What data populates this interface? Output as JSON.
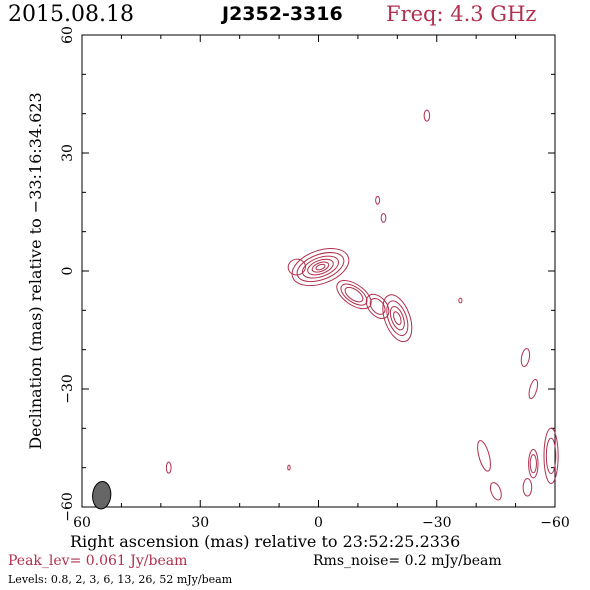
{
  "header": {
    "date": "2015.08.18",
    "source": "J2352-3316",
    "frequency": "Freq: 4.3 GHz"
  },
  "footer": {
    "peak": "Peak_lev=  0.061 Jy/beam",
    "rms": "Rms_noise=  0.2 mJy/beam",
    "levels": "Levels: 0.8,   2,   3,   6,   13,   26,   52 mJy/beam"
  },
  "colors": {
    "contour": "#b0304d",
    "axes": "#000000",
    "beam": "#666666"
  },
  "chart_data": {
    "type": "contour",
    "xlabel": "Right ascension (mas) relative to 23:52:25.2336",
    "ylabel": "Declination (mas) relative to −33:16:34.623",
    "xlim": [
      60,
      -60
    ],
    "ylim": [
      -60,
      60
    ],
    "xticks": [
      60,
      30,
      0,
      -30,
      -60
    ],
    "yticks": [
      -60,
      -30,
      0,
      30,
      60
    ],
    "xtick_labels": [
      "60",
      "30",
      "0",
      "−30",
      "−60"
    ],
    "ytick_labels": [
      "−60",
      "−30",
      "0",
      "30",
      "60"
    ],
    "contour_levels_mJy": [
      0.8,
      2,
      3,
      6,
      13,
      26,
      52
    ],
    "peak_Jy_per_beam": 0.061,
    "rms_mJy_per_beam": 0.2,
    "beam": {
      "x": 55,
      "y": -57,
      "major_mas": 3.5,
      "minor_mas": 2.3,
      "pa_deg": 5
    },
    "components": [
      {
        "name": "core",
        "x": -0.5,
        "y": 1,
        "contours": [
          [
            7.5,
            4.2,
            20
          ],
          [
            6.2,
            3.2,
            20
          ],
          [
            4.8,
            2.4,
            20
          ],
          [
            3.4,
            1.7,
            20
          ],
          [
            2.2,
            1.1,
            20
          ],
          [
            1.2,
            0.6,
            20
          ]
        ]
      },
      {
        "name": "west-blob",
        "x": 5.5,
        "y": 1,
        "contours": [
          [
            2.2,
            2.0,
            10
          ]
        ]
      },
      {
        "name": "jet-knot-1",
        "x": -9,
        "y": -6,
        "contours": [
          [
            5.0,
            2.6,
            -35
          ],
          [
            3.8,
            1.9,
            -35
          ],
          [
            2.6,
            1.3,
            -35
          ]
        ]
      },
      {
        "name": "jet-knot-2",
        "x": -15,
        "y": -9,
        "contours": [
          [
            3.5,
            2.3,
            -50
          ],
          [
            2.3,
            1.5,
            -50
          ]
        ]
      },
      {
        "name": "jet-knot-3",
        "x": -20,
        "y": -12,
        "contours": [
          [
            6.2,
            3.2,
            -70
          ],
          [
            4.6,
            2.3,
            -70
          ],
          [
            3.1,
            1.5,
            -70
          ],
          [
            1.7,
            0.8,
            -70
          ]
        ]
      },
      {
        "name": "noise-a",
        "x": -27.5,
        "y": 39.5,
        "contours": [
          [
            1.4,
            0.7,
            90
          ]
        ]
      },
      {
        "name": "noise-b",
        "x": -15,
        "y": 18,
        "contours": [
          [
            1.0,
            0.5,
            90
          ]
        ]
      },
      {
        "name": "noise-c",
        "x": -16.5,
        "y": 13.5,
        "contours": [
          [
            1.1,
            0.6,
            90
          ]
        ]
      },
      {
        "name": "noise-d",
        "x": -36,
        "y": -7.5,
        "contours": [
          [
            0.6,
            0.4,
            90
          ]
        ]
      },
      {
        "name": "noise-e",
        "x": -52.5,
        "y": -22,
        "contours": [
          [
            2.3,
            1.0,
            80
          ]
        ]
      },
      {
        "name": "noise-f",
        "x": -54.5,
        "y": -30,
        "contours": [
          [
            2.5,
            0.9,
            75
          ]
        ]
      },
      {
        "name": "noise-g",
        "x": 38,
        "y": -50,
        "contours": [
          [
            1.4,
            0.6,
            90
          ]
        ]
      },
      {
        "name": "noise-h",
        "x": 7.5,
        "y": -50,
        "contours": [
          [
            0.6,
            0.3,
            90
          ]
        ]
      },
      {
        "name": "noise-i",
        "x": -42,
        "y": -47,
        "contours": [
          [
            4.0,
            1.3,
            -75
          ]
        ]
      },
      {
        "name": "noise-j",
        "x": -54.5,
        "y": -49,
        "contours": [
          [
            3.6,
            1.2,
            90
          ],
          [
            2.3,
            0.8,
            90
          ]
        ]
      },
      {
        "name": "noise-k",
        "x": -59,
        "y": -47,
        "contours": [
          [
            7.0,
            1.8,
            90
          ],
          [
            4.5,
            1.2,
            90
          ]
        ]
      },
      {
        "name": "noise-l",
        "x": -53,
        "y": -55,
        "contours": [
          [
            2.2,
            1.1,
            90
          ]
        ]
      },
      {
        "name": "noise-m",
        "x": -45,
        "y": -56,
        "contours": [
          [
            2.3,
            1.2,
            -70
          ]
        ]
      }
    ]
  }
}
